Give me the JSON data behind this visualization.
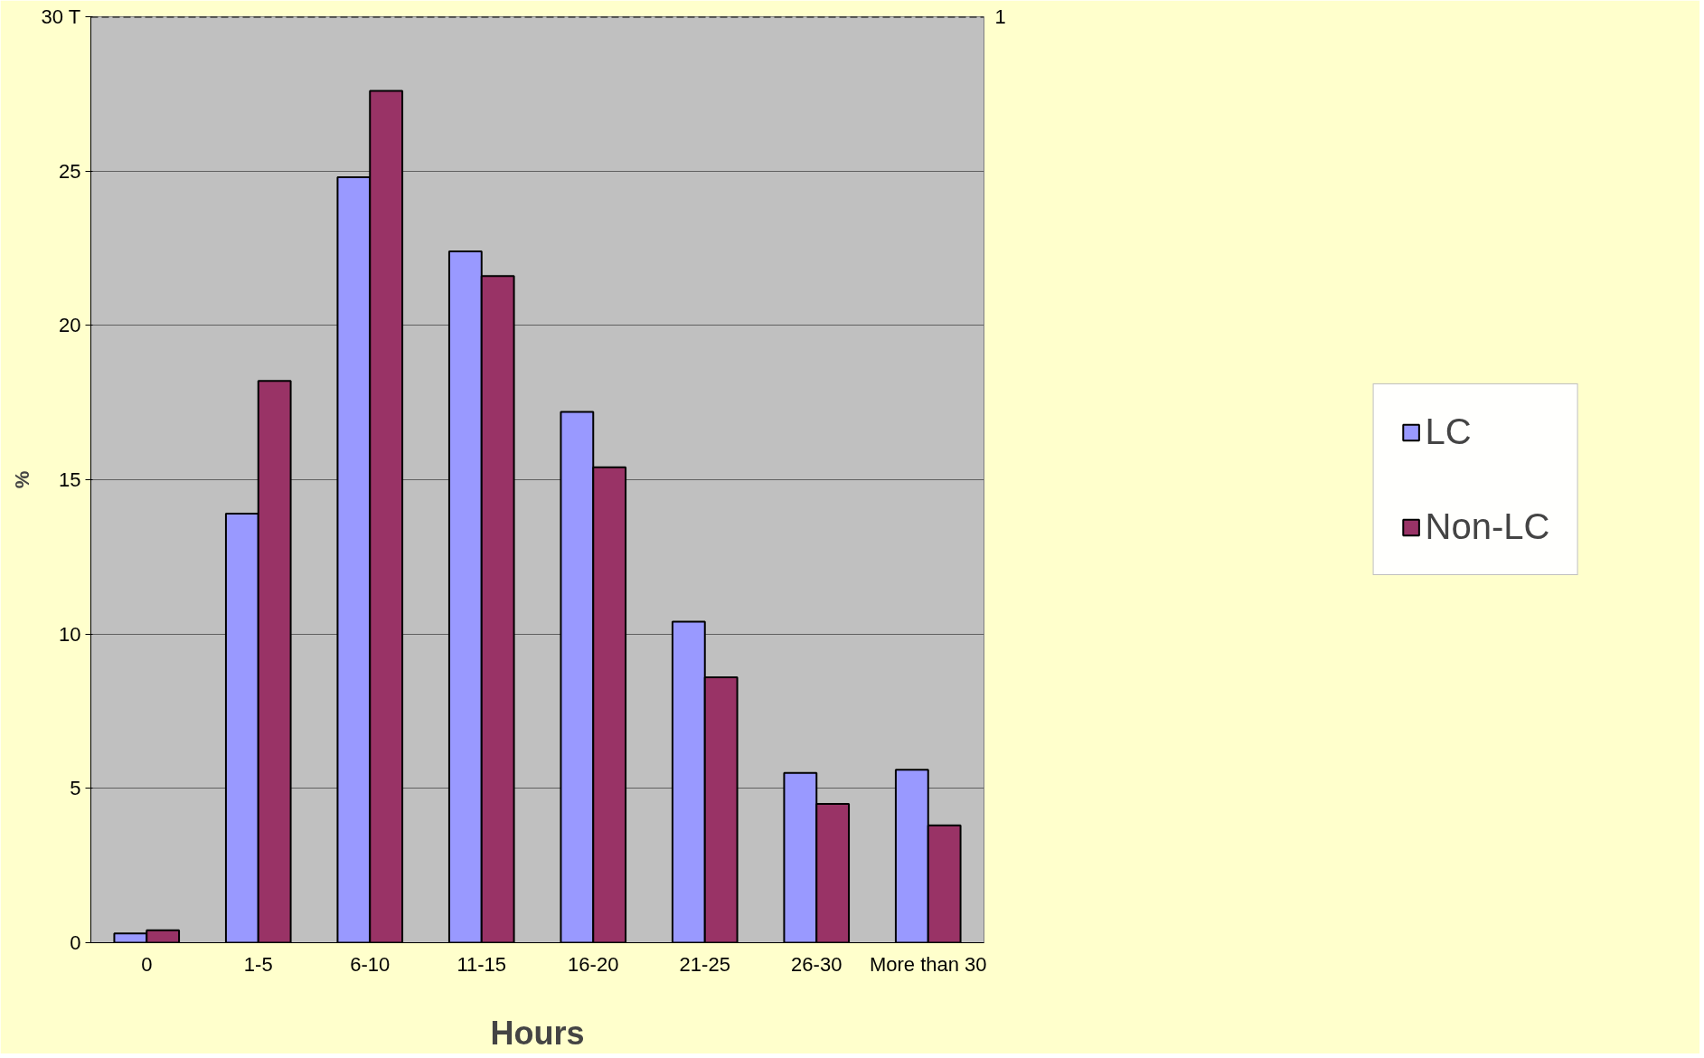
{
  "chart_data": {
    "type": "bar",
    "xlabel": "Hours",
    "ylabel": "%",
    "categories": [
      "0",
      "1-5",
      "6-10",
      "11-15",
      "16-20",
      "21-25",
      "26-30",
      "More than 30"
    ],
    "series": [
      {
        "name": "LC",
        "color": "#9999ff",
        "values": [
          0.3,
          13.9,
          24.8,
          22.4,
          17.2,
          10.4,
          5.5,
          5.6
        ]
      },
      {
        "name": "Non-LC",
        "color": "#993366",
        "values": [
          0.4,
          18.2,
          27.6,
          21.6,
          15.4,
          8.6,
          4.5,
          3.8
        ]
      }
    ],
    "ylim": [
      0,
      30
    ],
    "yticks": [
      0,
      5,
      10,
      15,
      20,
      25,
      {
        "value": 30,
        "label": "30 T"
      }
    ],
    "grid": "y",
    "legend": "right",
    "ref_lines": [
      {
        "axis": "y",
        "value": 30,
        "line_style": "dashed",
        "color": "#000000"
      }
    ],
    "annotations": [
      "1"
    ]
  }
}
